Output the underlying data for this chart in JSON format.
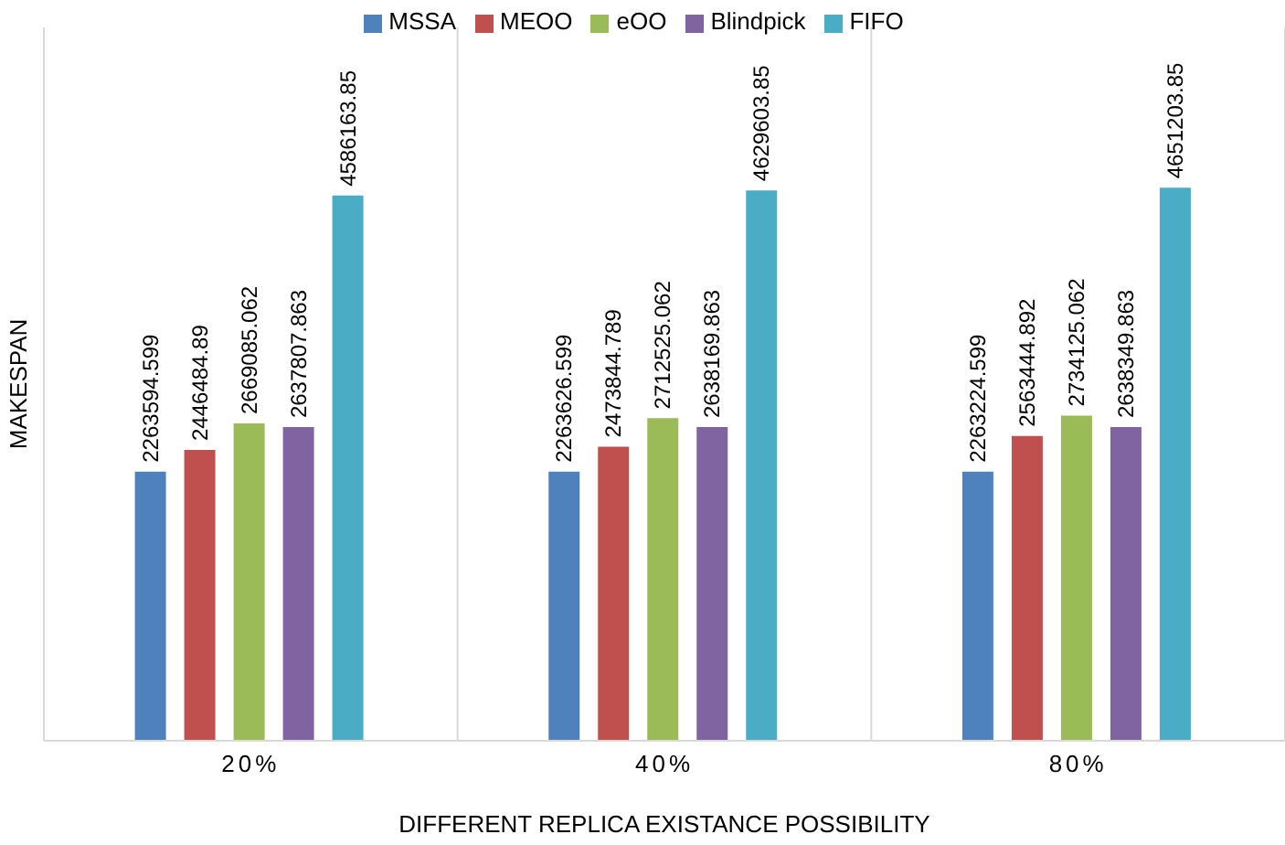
{
  "chart_data": {
    "type": "bar",
    "xlabel": "DIFFERENT REPLICA EXISTANCE POSSIBILITY",
    "ylabel": "MAKESPAN",
    "categories": [
      "20%",
      "40%",
      "80%"
    ],
    "series": [
      {
        "name": "MSSA",
        "color": "#4f81bd",
        "values": [
          2263594.599,
          2263626.599,
          2263224.599
        ]
      },
      {
        "name": "MEOO",
        "color": "#c0504d",
        "values": [
          2446484.89,
          2473844.789,
          2563444.892
        ]
      },
      {
        "name": "eOO",
        "color": "#9bbb59",
        "values": [
          2669085.062,
          2712525.062,
          2734125.062
        ]
      },
      {
        "name": "Blindpick",
        "color": "#8064a2",
        "values": [
          2637807.863,
          2638169.863,
          2638349.863
        ]
      },
      {
        "name": "FIFO",
        "color": "#4bacc6",
        "values": [
          4586163.85,
          4629603.85,
          4651203.85
        ]
      }
    ],
    "data_labels": true,
    "legend": "top",
    "grid": "x",
    "tick_labels": "x"
  }
}
